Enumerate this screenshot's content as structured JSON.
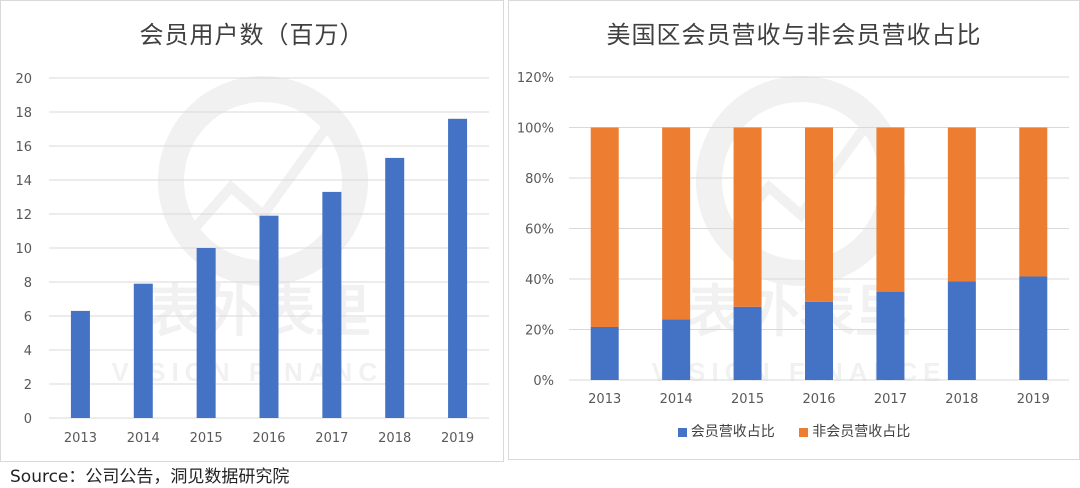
{
  "source_text": "Source：公司公告，洞见数据研究院",
  "colors": {
    "member": "#4472c4",
    "non_member": "#ed7d31",
    "grid": "#d9d9d9",
    "text": "#595959"
  },
  "chart_data": [
    {
      "type": "bar",
      "title": "会员用户数（百万）",
      "categories": [
        "2013",
        "2014",
        "2015",
        "2016",
        "2017",
        "2018",
        "2019"
      ],
      "values": [
        6.3,
        7.9,
        10.0,
        11.9,
        13.3,
        15.3,
        17.6
      ],
      "ylim": [
        0,
        20
      ],
      "yticks": [
        "0",
        "2",
        "4",
        "6",
        "8",
        "10",
        "12",
        "14",
        "16",
        "18",
        "20"
      ],
      "grid": true,
      "color": "#4472c4"
    },
    {
      "type": "bar",
      "stacked": true,
      "title": "美国区会员营收与非会员营收占比",
      "categories": [
        "2013",
        "2014",
        "2015",
        "2016",
        "2017",
        "2018",
        "2019"
      ],
      "series": [
        {
          "name": "会员营收占比",
          "values": [
            21,
            24,
            29,
            31,
            35,
            39,
            41
          ],
          "color": "#4472c4"
        },
        {
          "name": "非会员营收占比",
          "values": [
            79,
            76,
            71,
            69,
            65,
            61,
            59
          ],
          "color": "#ed7d31"
        }
      ],
      "ylim": [
        0,
        120
      ],
      "yticks": [
        "0%",
        "20%",
        "40%",
        "60%",
        "80%",
        "100%",
        "120%"
      ],
      "grid": true,
      "legend_position": "bottom"
    }
  ]
}
